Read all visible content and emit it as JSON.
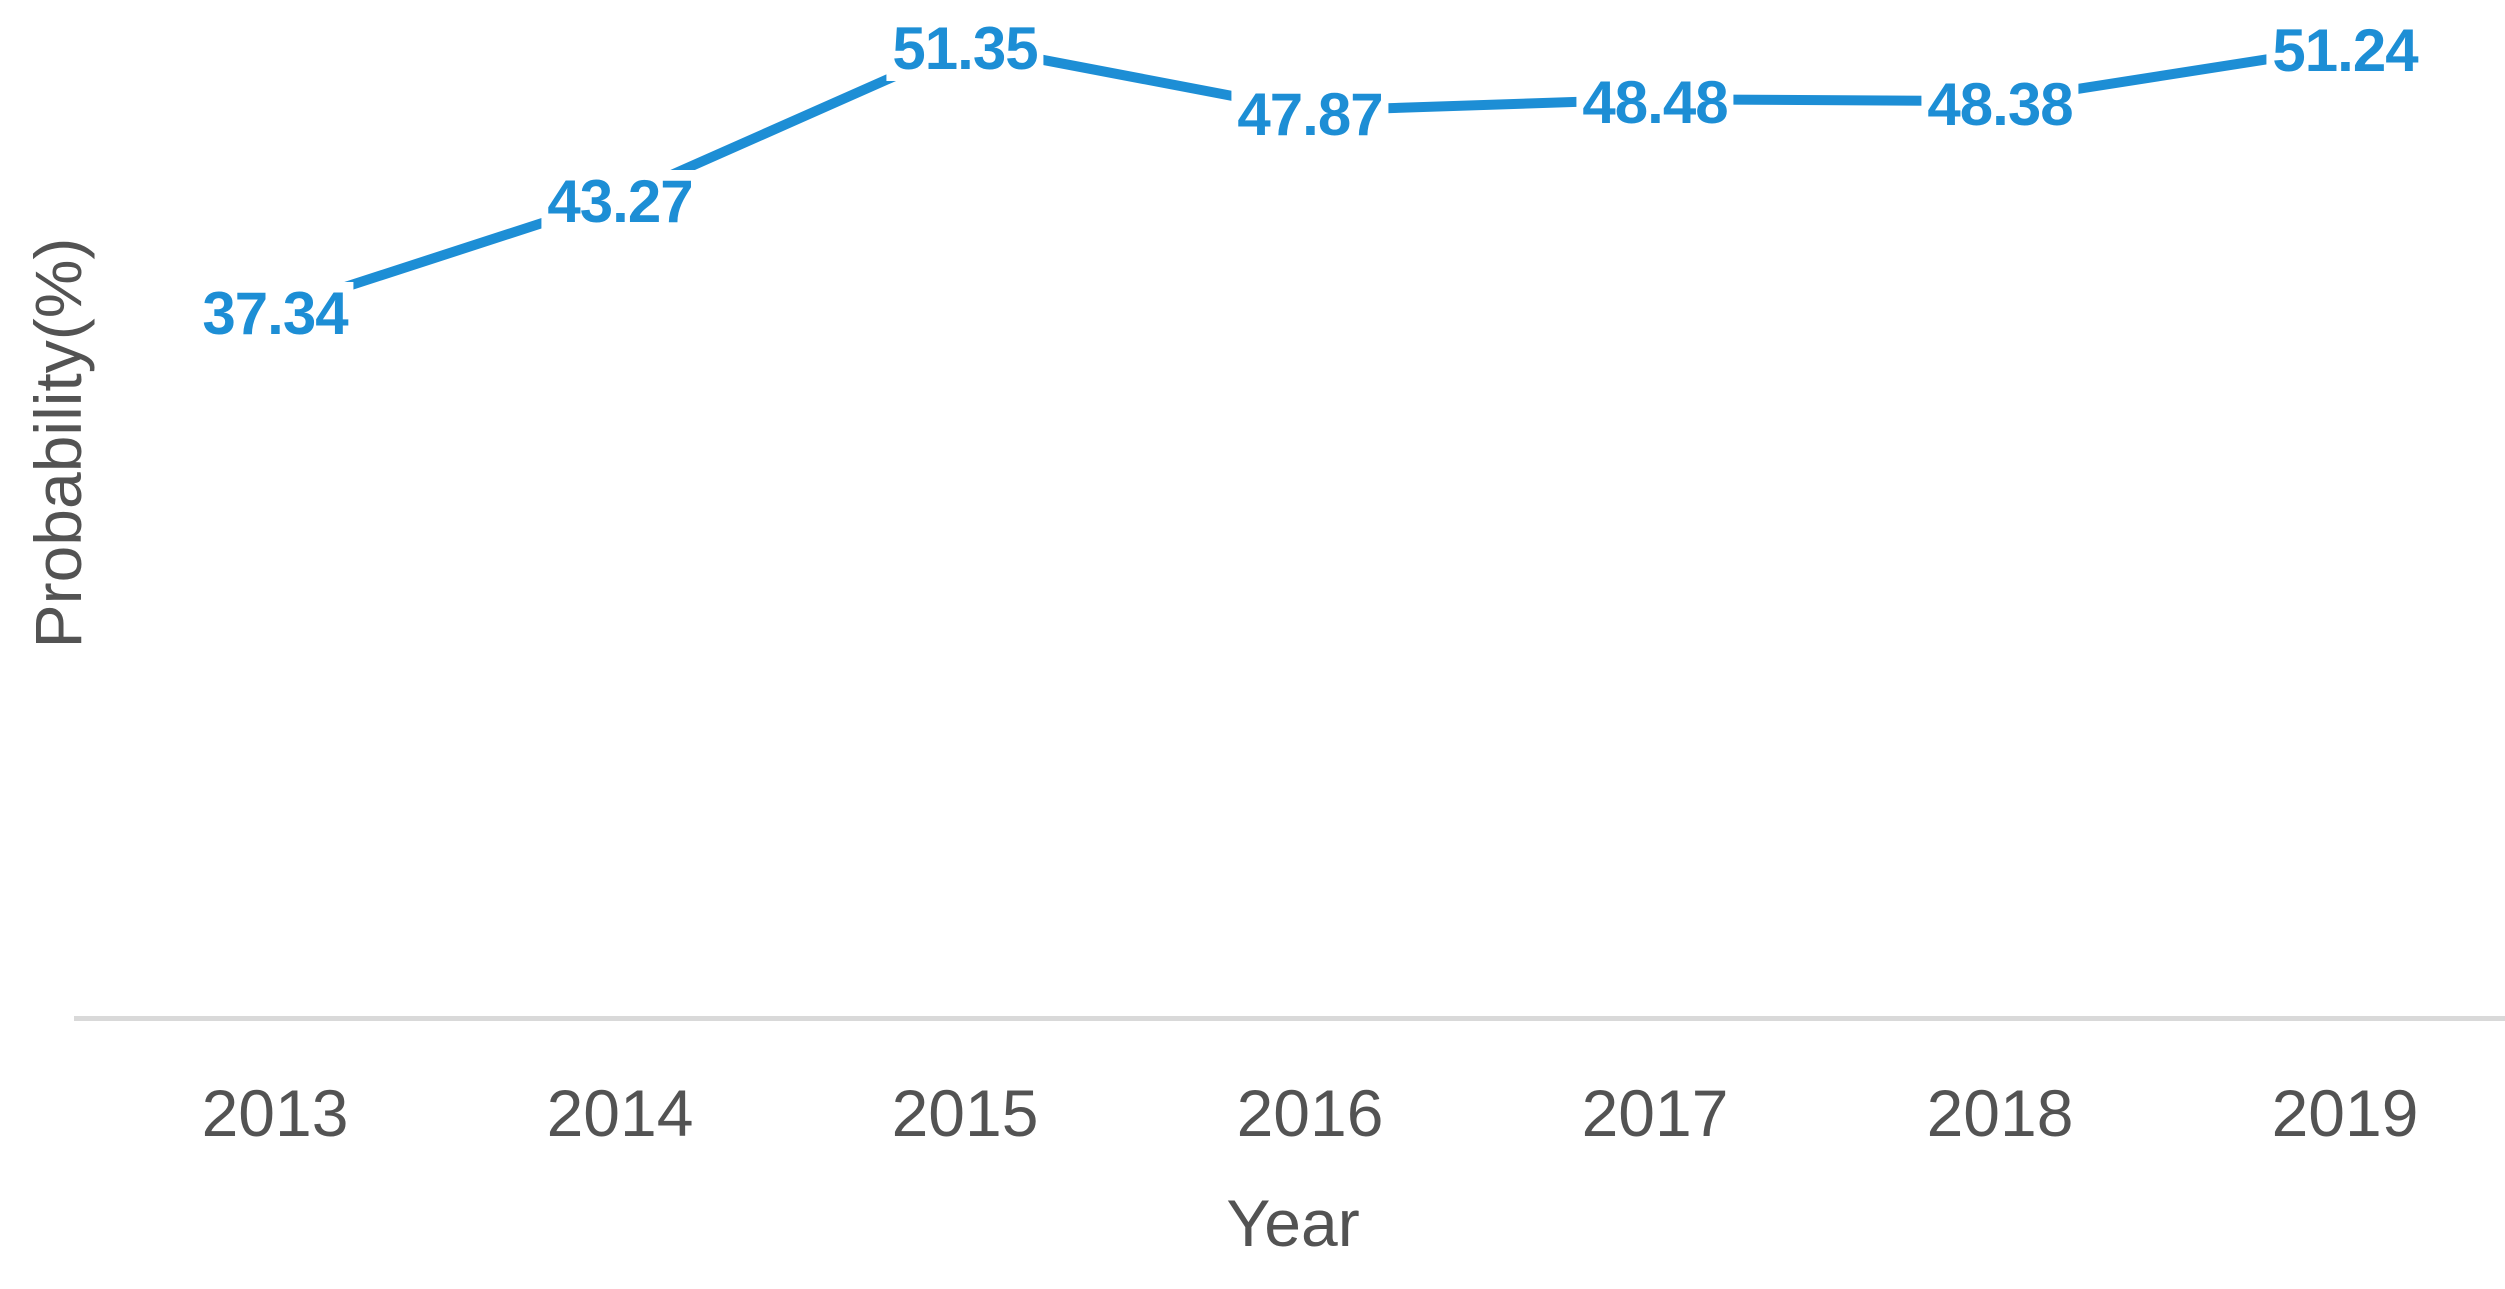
{
  "chart_data": {
    "type": "line",
    "title": "",
    "xlabel": "Year",
    "ylabel": "Probability(%)",
    "categories": [
      "2013",
      "2014",
      "2015",
      "2016",
      "2017",
      "2018",
      "2019"
    ],
    "series": [
      {
        "name": "Probability(%)",
        "values": [
          37.34,
          43.27,
          51.35,
          47.87,
          48.48,
          48.38,
          51.24
        ]
      }
    ],
    "data_labels": [
      "37.34",
      "43.27",
      "51.35",
      "47.87",
      "48.48",
      "48.38",
      "51.24"
    ],
    "legend_position": "none",
    "grid": false,
    "y_axis_ticks_visible": false,
    "colors": {
      "line": "#1d8ed5",
      "data_label_text": "#1d8ed5",
      "axis_text": "#535353",
      "axis_line": "#d9d9d9",
      "background": "#ffffff"
    }
  }
}
